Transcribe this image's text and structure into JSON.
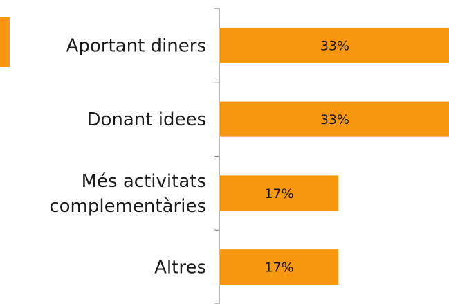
{
  "chart_data": {
    "type": "bar",
    "orientation": "horizontal",
    "categories": [
      [
        "Aportant diners"
      ],
      [
        "Donant idees"
      ],
      [
        "Més activitats",
        "complementàries"
      ],
      [
        "Altres"
      ]
    ],
    "values": [
      33,
      33,
      17,
      17
    ],
    "data_labels": [
      "33%",
      "33%",
      "17%",
      "17%"
    ],
    "xlim": [
      0,
      33
    ],
    "grid": false,
    "colors": {
      "bar": "#F7970F",
      "axis": "#8c8c8c",
      "text": "#1a1a1a"
    }
  }
}
